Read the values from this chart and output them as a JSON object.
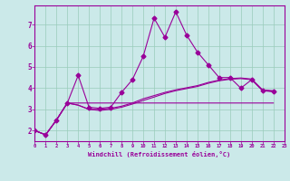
{
  "xlabel": "Windchill (Refroidissement éolien,°C)",
  "background_color": "#cbe9e9",
  "grid_color": "#99ccbb",
  "line_color": "#990099",
  "xlim": [
    0,
    23
  ],
  "ylim": [
    1.5,
    7.9
  ],
  "xticks": [
    0,
    1,
    2,
    3,
    4,
    5,
    6,
    7,
    8,
    9,
    10,
    11,
    12,
    13,
    14,
    15,
    16,
    17,
    18,
    19,
    20,
    21,
    22,
    23
  ],
  "yticks": [
    2,
    3,
    4,
    5,
    6,
    7
  ],
  "series": [
    [
      2.0,
      1.8,
      2.5,
      3.3,
      4.6,
      3.1,
      3.05,
      3.1,
      3.8,
      4.4,
      5.5,
      7.3,
      6.4,
      7.6,
      6.5,
      5.7,
      5.1,
      4.5,
      4.5,
      4.0,
      4.4,
      3.9,
      3.85
    ],
    [
      2.0,
      1.8,
      2.5,
      3.3,
      3.3,
      3.3,
      3.3,
      3.3,
      3.3,
      3.3,
      3.3,
      3.3,
      3.3,
      3.3,
      3.3,
      3.3,
      3.3,
      3.3,
      3.3,
      3.3,
      3.3,
      3.3,
      3.3
    ],
    [
      2.0,
      1.8,
      2.5,
      3.3,
      3.2,
      3.0,
      3.0,
      3.05,
      3.15,
      3.3,
      3.5,
      3.65,
      3.8,
      3.92,
      4.02,
      4.12,
      4.27,
      4.38,
      4.45,
      4.48,
      4.43,
      3.92,
      3.88
    ],
    [
      2.0,
      1.8,
      2.5,
      3.3,
      3.2,
      3.0,
      2.95,
      3.0,
      3.1,
      3.25,
      3.42,
      3.58,
      3.75,
      3.88,
      3.98,
      4.08,
      4.23,
      4.35,
      4.42,
      4.45,
      4.4,
      3.88,
      3.83
    ]
  ],
  "marker_series": 0,
  "marker": "D",
  "marker_size": 2.5
}
